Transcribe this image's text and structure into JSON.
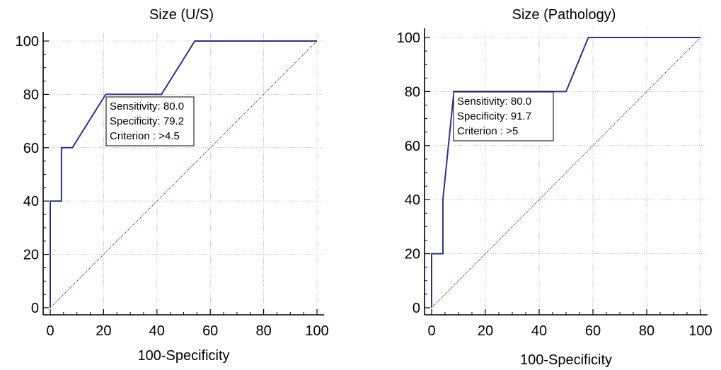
{
  "chart_data": [
    {
      "type": "line",
      "title": "Size (U/S)",
      "xlabel": "100-Specificity",
      "ylabel": "",
      "xlim": [
        0,
        100
      ],
      "ylim": [
        0,
        100
      ],
      "xticks": [
        "0",
        "20",
        "40",
        "60",
        "80",
        "100"
      ],
      "yticks": [
        "0",
        "20",
        "40",
        "60",
        "80",
        "100"
      ],
      "grid": true,
      "series": [
        {
          "x": [
            0,
            0,
            4.2,
            4.2,
            8.3,
            20.8,
            41.7,
            54.2,
            100
          ],
          "y": [
            0,
            40,
            40,
            60,
            60,
            80,
            80,
            100,
            100
          ],
          "color": "#2e3192"
        }
      ],
      "reference_line": {
        "x": [
          0,
          100
        ],
        "y": [
          0,
          100
        ],
        "color": "#8b1a1a"
      },
      "annotation": {
        "lines": [
          "Sensitivity: 80.0",
          "Specificity: 79.2",
          "Criterion : >4.5"
        ],
        "anchor": {
          "x": 20.8,
          "y": 80
        }
      }
    },
    {
      "type": "line",
      "title": "Size (Pathology)",
      "xlabel": "100-Specificity",
      "ylabel": "",
      "xlim": [
        0,
        100
      ],
      "ylim": [
        0,
        100
      ],
      "xticks": [
        "0",
        "20",
        "40",
        "60",
        "80",
        "100"
      ],
      "yticks": [
        "0",
        "20",
        "40",
        "60",
        "80",
        "100"
      ],
      "grid": true,
      "series": [
        {
          "x": [
            0,
            0,
            4.2,
            4.2,
            8.3,
            50,
            58.3,
            100
          ],
          "y": [
            0,
            20,
            20,
            40,
            80,
            80,
            100,
            100
          ],
          "color": "#2e3192"
        }
      ],
      "reference_line": {
        "x": [
          0,
          100
        ],
        "y": [
          0,
          100
        ],
        "color": "#8b1a1a"
      },
      "annotation": {
        "lines": [
          "Sensitivity: 80.0",
          "Specificity: 91.7",
          "Criterion : >5"
        ],
        "anchor": {
          "x": 8.3,
          "y": 80
        }
      }
    }
  ]
}
